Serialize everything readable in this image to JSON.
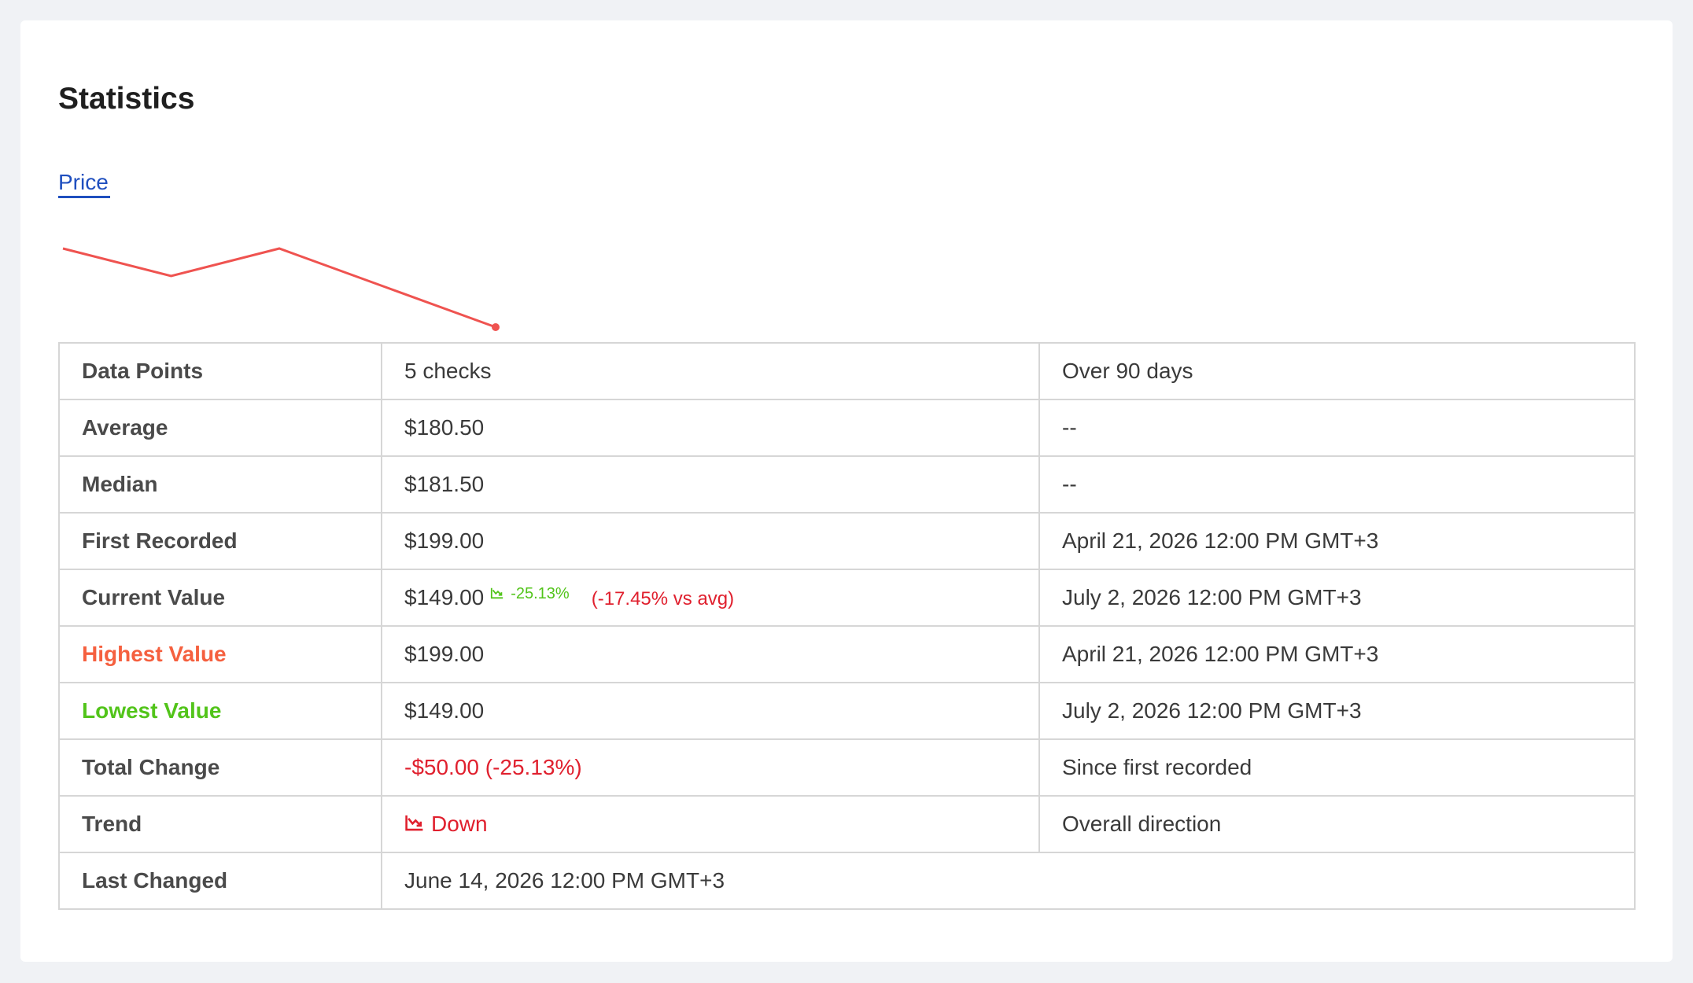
{
  "header": {
    "title": "Statistics"
  },
  "tabs": [
    {
      "label": "Price",
      "active": true
    }
  ],
  "sparkline": {
    "values": [
      199,
      181.5,
      199,
      174,
      149
    ],
    "color": "#ef5350"
  },
  "table": {
    "rows": [
      {
        "label": "Data Points",
        "value": "5 checks",
        "note": "Over 90 days"
      },
      {
        "label": "Average",
        "value": "$180.50",
        "note": "--"
      },
      {
        "label": "Median",
        "value": "$181.50",
        "note": "--"
      },
      {
        "label": "First Recorded",
        "value": "$199.00",
        "note": "April 21, 2026 12:00 PM GMT+3"
      },
      {
        "label": "Current Value",
        "value": "$149.00",
        "change": "-25.13%",
        "vs_avg": "(-17.45% vs avg)",
        "note": "July 2, 2026 12:00 PM GMT+3"
      },
      {
        "label": "Highest Value",
        "value": "$199.00",
        "note": "April 21, 2026 12:00 PM GMT+3"
      },
      {
        "label": "Lowest Value",
        "value": "$149.00",
        "note": "July 2, 2026 12:00 PM GMT+3"
      },
      {
        "label": "Total Change",
        "value": "-$50.00 (-25.13%)",
        "note": "Since first recorded"
      },
      {
        "label": "Trend",
        "value": "Down",
        "note": "Overall direction"
      },
      {
        "label": "Last Changed",
        "value": "June 14, 2026 12:00 PM GMT+3"
      }
    ]
  }
}
